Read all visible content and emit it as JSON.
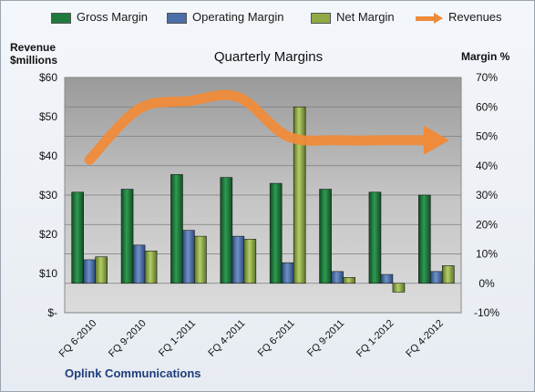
{
  "legend": {
    "gross": "Gross Margin",
    "operating": "Operating Margin",
    "net": "Net Margin",
    "revenues": "Revenues"
  },
  "labels": {
    "left_axis": "Revenue",
    "left_axis_unit": "$millions",
    "right_axis": "Margin %",
    "title": "Quarterly Margins",
    "company": "Oplink Communications"
  },
  "colors": {
    "gross": "#1e7a3c",
    "operating": "#4a6fa8",
    "net": "#8faa45",
    "revenues": "#ef8b3a",
    "plot_bg": "#c6c6c6"
  },
  "chart_data": {
    "type": "bar",
    "title": "Quarterly Margins",
    "categories": [
      "FQ 6-2010",
      "FQ 9-2010",
      "FQ 1-2011",
      "FQ 4-2011",
      "FQ 6-2011",
      "FQ 9-2011",
      "FQ 1-2012",
      "FQ 4-2012"
    ],
    "margin_axis": {
      "label": "Margin %",
      "ylim": [
        -10,
        70
      ],
      "ticks": [
        "-10%",
        "0%",
        "10%",
        "20%",
        "30%",
        "40%",
        "50%",
        "60%",
        "70%"
      ]
    },
    "revenue_axis": {
      "label": "Revenue $millions",
      "ylim": [
        0,
        60
      ],
      "ticks": [
        "$-",
        "$10",
        "$20",
        "$30",
        "$40",
        "$50",
        "$60"
      ]
    },
    "series": [
      {
        "name": "Gross Margin",
        "axis": "margin",
        "values": [
          31,
          32,
          37,
          36,
          34,
          32,
          31,
          30
        ]
      },
      {
        "name": "Operating Margin",
        "axis": "margin",
        "values": [
          8,
          13,
          18,
          16,
          7,
          4,
          3,
          4
        ]
      },
      {
        "name": "Net Margin",
        "axis": "margin",
        "values": [
          9,
          11,
          16,
          15,
          60,
          2,
          -3,
          6
        ]
      },
      {
        "name": "Revenues",
        "axis": "revenue",
        "type": "line",
        "values": [
          39,
          52,
          54,
          55,
          45,
          44,
          44,
          44
        ]
      }
    ],
    "grid": true,
    "legend_position": "top"
  }
}
